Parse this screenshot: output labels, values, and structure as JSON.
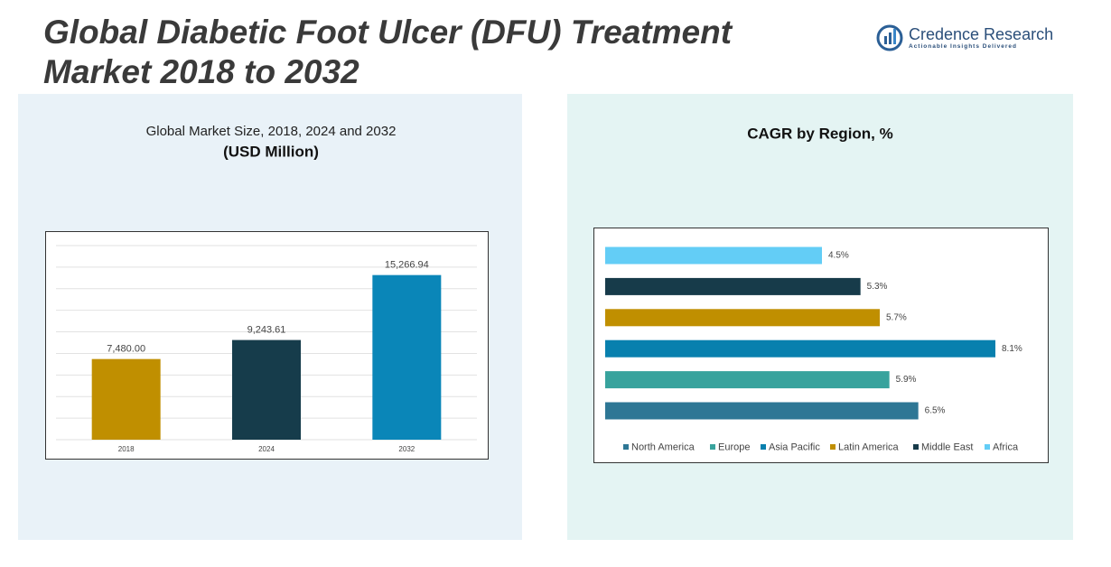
{
  "title": "Global Diabetic Foot Ulcer (DFU) Treatment Market 2018 to 2032",
  "logo": {
    "name": "Credence Research",
    "tagline": "Actionable Insights Delivered"
  },
  "chart_data": [
    {
      "type": "bar",
      "title": "Global Market Size, 2018, 2024 and 2032",
      "subtitle": "(USD Million)",
      "categories": [
        "2018",
        "2024",
        "2032"
      ],
      "values": [
        7480,
        9243.61,
        15266.94
      ],
      "value_labels": [
        "7,480.00",
        "9,243.61",
        "15,266.94"
      ],
      "colors": [
        "#c08f00",
        "#163c4b",
        "#0a86b8"
      ],
      "ylim": [
        0,
        18000
      ],
      "yticks": [
        0,
        2000,
        4000,
        6000,
        8000,
        10000,
        12000,
        14000,
        16000,
        18000
      ],
      "grid": true
    },
    {
      "type": "hbar",
      "title": "CAGR by Region, %",
      "xlim": [
        0,
        9
      ],
      "legend": "bottom",
      "series": [
        {
          "name": "North America",
          "color": "#2e7795",
          "values": [
            6.5
          ],
          "value_labels": [
            "6.5%"
          ]
        },
        {
          "name": "Europe",
          "color": "#38a39d",
          "values": [
            5.9
          ],
          "value_labels": [
            "5.9%"
          ]
        },
        {
          "name": "Asia Pacific",
          "color": "#0880ae",
          "values": [
            8.1
          ],
          "value_labels": [
            "8.1%"
          ]
        },
        {
          "name": "Latin America",
          "color": "#c08f00",
          "values": [
            5.7
          ],
          "value_labels": [
            "5.7%"
          ]
        },
        {
          "name": "Middle East",
          "color": "#173b4a",
          "values": [
            5.3
          ],
          "value_labels": [
            "5.3%"
          ]
        },
        {
          "name": "Africa",
          "color": "#63cdf6",
          "values": [
            4.5
          ],
          "value_labels": [
            "4.5%"
          ]
        }
      ]
    }
  ]
}
